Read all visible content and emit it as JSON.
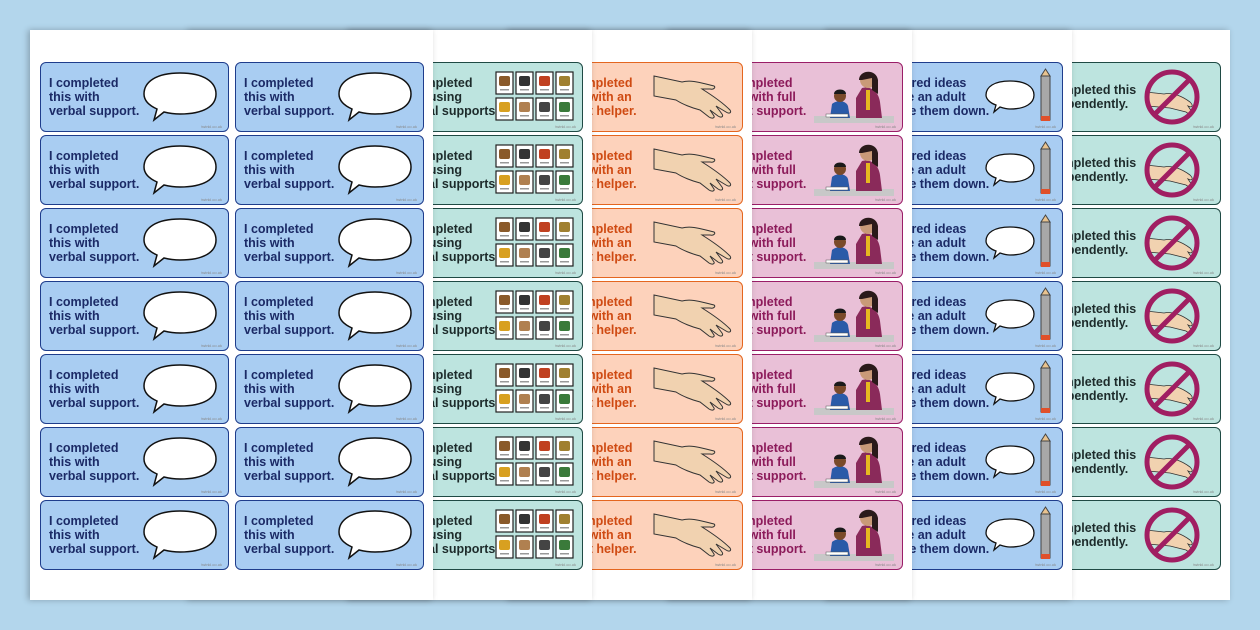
{
  "watermark": "twinkl.co.uk",
  "rows_per_sheet": 7,
  "sheets": [
    {
      "id": "verbal-support",
      "icon": "speech-bubble-icon",
      "bg": "#a9cdf2",
      "border": "#1f3d8c",
      "color": "#1b2a66",
      "lines": [
        "I completed",
        "this with",
        "verbal support."
      ]
    },
    {
      "id": "visual-supports",
      "icon": "visual-symbols-icon",
      "bg": "#bde4df",
      "border": "#1f4a44",
      "color": "#1d2b2b",
      "lines": [
        "I completed",
        "this using",
        "visual supports."
      ]
    },
    {
      "id": "adult-helper",
      "icon": "helping-hand-icon",
      "bg": "#fdd2bb",
      "border": "#e4661f",
      "color": "#cf4a12",
      "lines": [
        "I completed",
        "this with an",
        "adult helper."
      ]
    },
    {
      "id": "full-adult-support",
      "icon": "teacher-and-child-icon",
      "bg": "#e9c0d7",
      "border": "#9a1e68",
      "color": "#8c1a5a",
      "lines": [
        "I completed",
        "this with full",
        "adult support."
      ]
    },
    {
      "id": "adult-scribe",
      "icon": "speech-bubble-pencil-icon",
      "bg": "#a9cdf2",
      "border": "#1f3d8c",
      "color": "#1b2a66",
      "lines": [
        "I shared ideas",
        "while an adult",
        "wrote them down."
      ]
    },
    {
      "id": "independently",
      "icon": "no-hand-icon",
      "bg": "#bde4df",
      "border": "#1f4a44",
      "color": "#1d2b2b",
      "lines": [
        "I completed this",
        "independently."
      ]
    }
  ]
}
